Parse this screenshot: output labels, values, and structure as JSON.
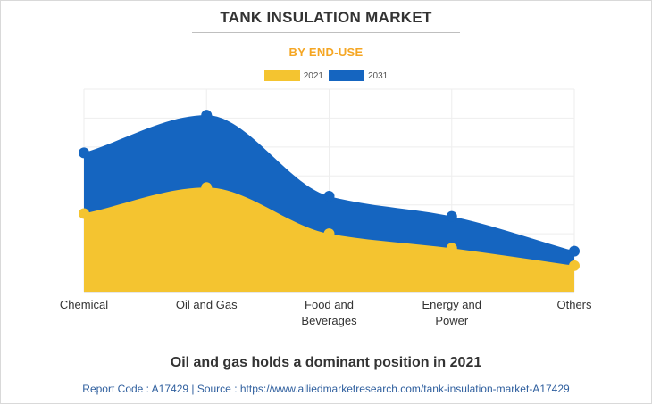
{
  "chart_data": {
    "type": "area",
    "title": "TANK INSULATION MARKET",
    "subtitle": "BY END-USE",
    "categories": [
      "Chemical",
      "Oil and Gas",
      "Food and Beverages",
      "Energy and Power",
      "Others"
    ],
    "category_lines": [
      [
        "Chemical"
      ],
      [
        "Oil and Gas"
      ],
      [
        "Food and",
        "Beverages"
      ],
      [
        "Energy and",
        "Power"
      ],
      [
        "Others"
      ]
    ],
    "series": [
      {
        "name": "2031",
        "values": [
          48,
          61,
          33,
          26,
          14
        ],
        "color": "#1565c0"
      },
      {
        "name": "2021",
        "values": [
          27,
          36,
          20,
          15,
          9
        ],
        "color": "#f4c430"
      }
    ],
    "ylim": [
      0,
      70
    ],
    "grid": true,
    "legend_position": "top-center"
  },
  "legend": {
    "item_2021": "2021",
    "item_2031": "2031",
    "color_2021": "#f4c430",
    "color_2031": "#1565c0"
  },
  "caption": "Oil and gas holds a dominant position in 2021",
  "footer": "Report Code : A17429  |  Source : https://www.alliedmarketresearch.com/tank-insulation-market-A17429"
}
